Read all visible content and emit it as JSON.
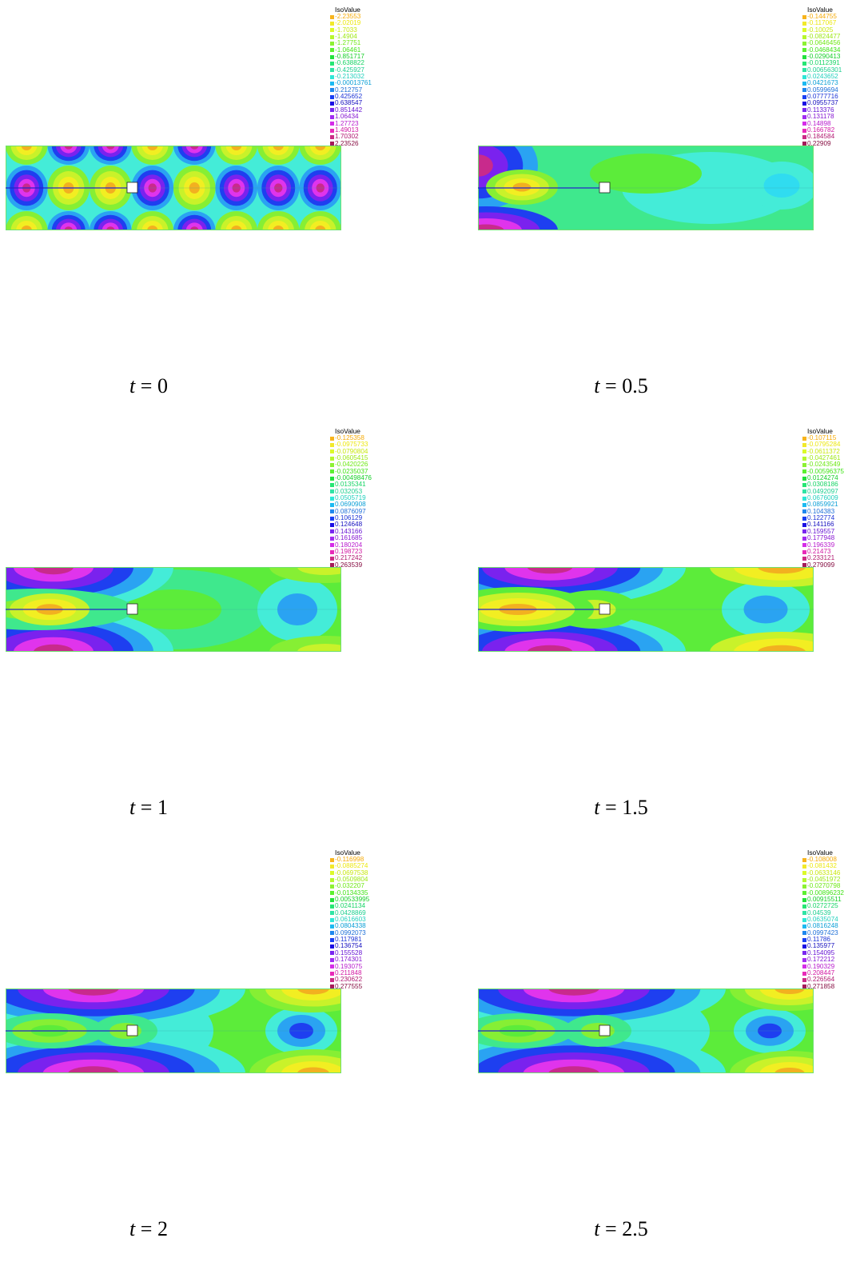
{
  "figure": {
    "legend_title": "IsoValue",
    "panels": [
      {
        "caption": "t = 0",
        "variant": "t0",
        "legend": [
          "-2.23553",
          "-2.02019",
          "-1.7033",
          "-1.4904",
          "-1.27751",
          "-1.06461",
          "-0.851717",
          "-0.638822",
          "-0.425927",
          "-0.213032",
          "-0.00013761",
          "0.212757",
          "0.425652",
          "0.638547",
          "0.851442",
          "1.06434",
          "1.27723",
          "1.49013",
          "1.70302",
          "2.23526"
        ]
      },
      {
        "caption": "t = 0.5",
        "variant": "t05",
        "legend": [
          "-0.144755",
          "-0.117067",
          "-0.10025",
          "-0.0824477",
          "-0.0646456",
          "-0.0468434",
          "-0.0290413",
          "-0.0112391",
          "0.00656301",
          "0.0243652",
          "0.0421673",
          "0.0599694",
          "0.0777716",
          "0.0955737",
          "0.113376",
          "0.131178",
          "0.14898",
          "0.166782",
          "0.184584",
          "0.22909"
        ]
      },
      {
        "caption": "t = 1",
        "variant": "t1",
        "legend": [
          "-0.125358",
          "-0.0975733",
          "-0.0790804",
          "-0.0605415",
          "-0.0420226",
          "-0.0235037",
          "-0.00498476",
          "0.0135341",
          "0.032053",
          "0.0505719",
          "0.0690908",
          "0.0876097",
          "0.106129",
          "0.124648",
          "0.143166",
          "0.161685",
          "0.180204",
          "0.198723",
          "0.217242",
          "0.263539"
        ]
      },
      {
        "caption": "t = 1.5",
        "variant": "t15",
        "legend": [
          "-0.107115",
          "-0.0795284",
          "-0.0611372",
          "-0.0427461",
          "-0.0243549",
          "-0.00596375",
          "0.0124274",
          "0.0308186",
          "0.0492097",
          "0.0676009",
          "0.0859921",
          "0.104383",
          "0.122774",
          "0.141166",
          "0.159557",
          "0.177948",
          "0.196339",
          "0.21473",
          "0.233121",
          "0.279099"
        ]
      },
      {
        "caption": "t = 2",
        "variant": "t2",
        "legend": [
          "-0.116998",
          "-0.0885274",
          "-0.0697538",
          "-0.0509804",
          "-0.032207",
          "-0.0134335",
          "0.00533995",
          "0.0241134",
          "0.0428869",
          "0.0616603",
          "0.0804338",
          "0.0992073",
          "0.117981",
          "0.136754",
          "0.155528",
          "0.174301",
          "0.193075",
          "0.211848",
          "0.230622",
          "0.277555"
        ]
      },
      {
        "caption": "t = 2.5",
        "variant": "t25",
        "legend": [
          "-0.108008",
          "-0.081432",
          "-0.0633146",
          "-0.0451972",
          "-0.0270798",
          "-0.00896232",
          "0.00915511",
          "0.0272725",
          "0.04539",
          "0.0635074",
          "0.0816248",
          "0.0997423",
          "0.11786",
          "0.135977",
          "0.154095",
          "0.172212",
          "0.190329",
          "0.208447",
          "0.226564",
          "0.271858"
        ]
      }
    ]
  },
  "colors": {
    "legend_scale": [
      "#f7b41c",
      "#f1e92a",
      "#dbfa28",
      "#b6f72d",
      "#8df132",
      "#5cf02f",
      "#22e23c",
      "#26e674",
      "#2fe4a5",
      "#2ee7d6",
      "#1cbaf1",
      "#1f87ee",
      "#1a3ff4",
      "#1b0fe4",
      "#7a27f0",
      "#a22bf2",
      "#d52ce8",
      "#e82ab8",
      "#cc2a86",
      "#a51b59"
    ],
    "legend_text": [
      "#f6ab08",
      "#ece80f",
      "#c8e80f",
      "#9ee814",
      "#6ee815",
      "#3ee314",
      "#15cf27",
      "#16d465",
      "#1dcf90",
      "#22d0bd",
      "#0a9fd6",
      "#1d6fd8",
      "#1b33d6",
      "#1610bf",
      "#6715d3",
      "#8617d2",
      "#b81bcd",
      "#d218a2",
      "#b01870",
      "#870f43"
    ],
    "field_border": "#6fe06f",
    "crack_line": "#2424c8"
  }
}
